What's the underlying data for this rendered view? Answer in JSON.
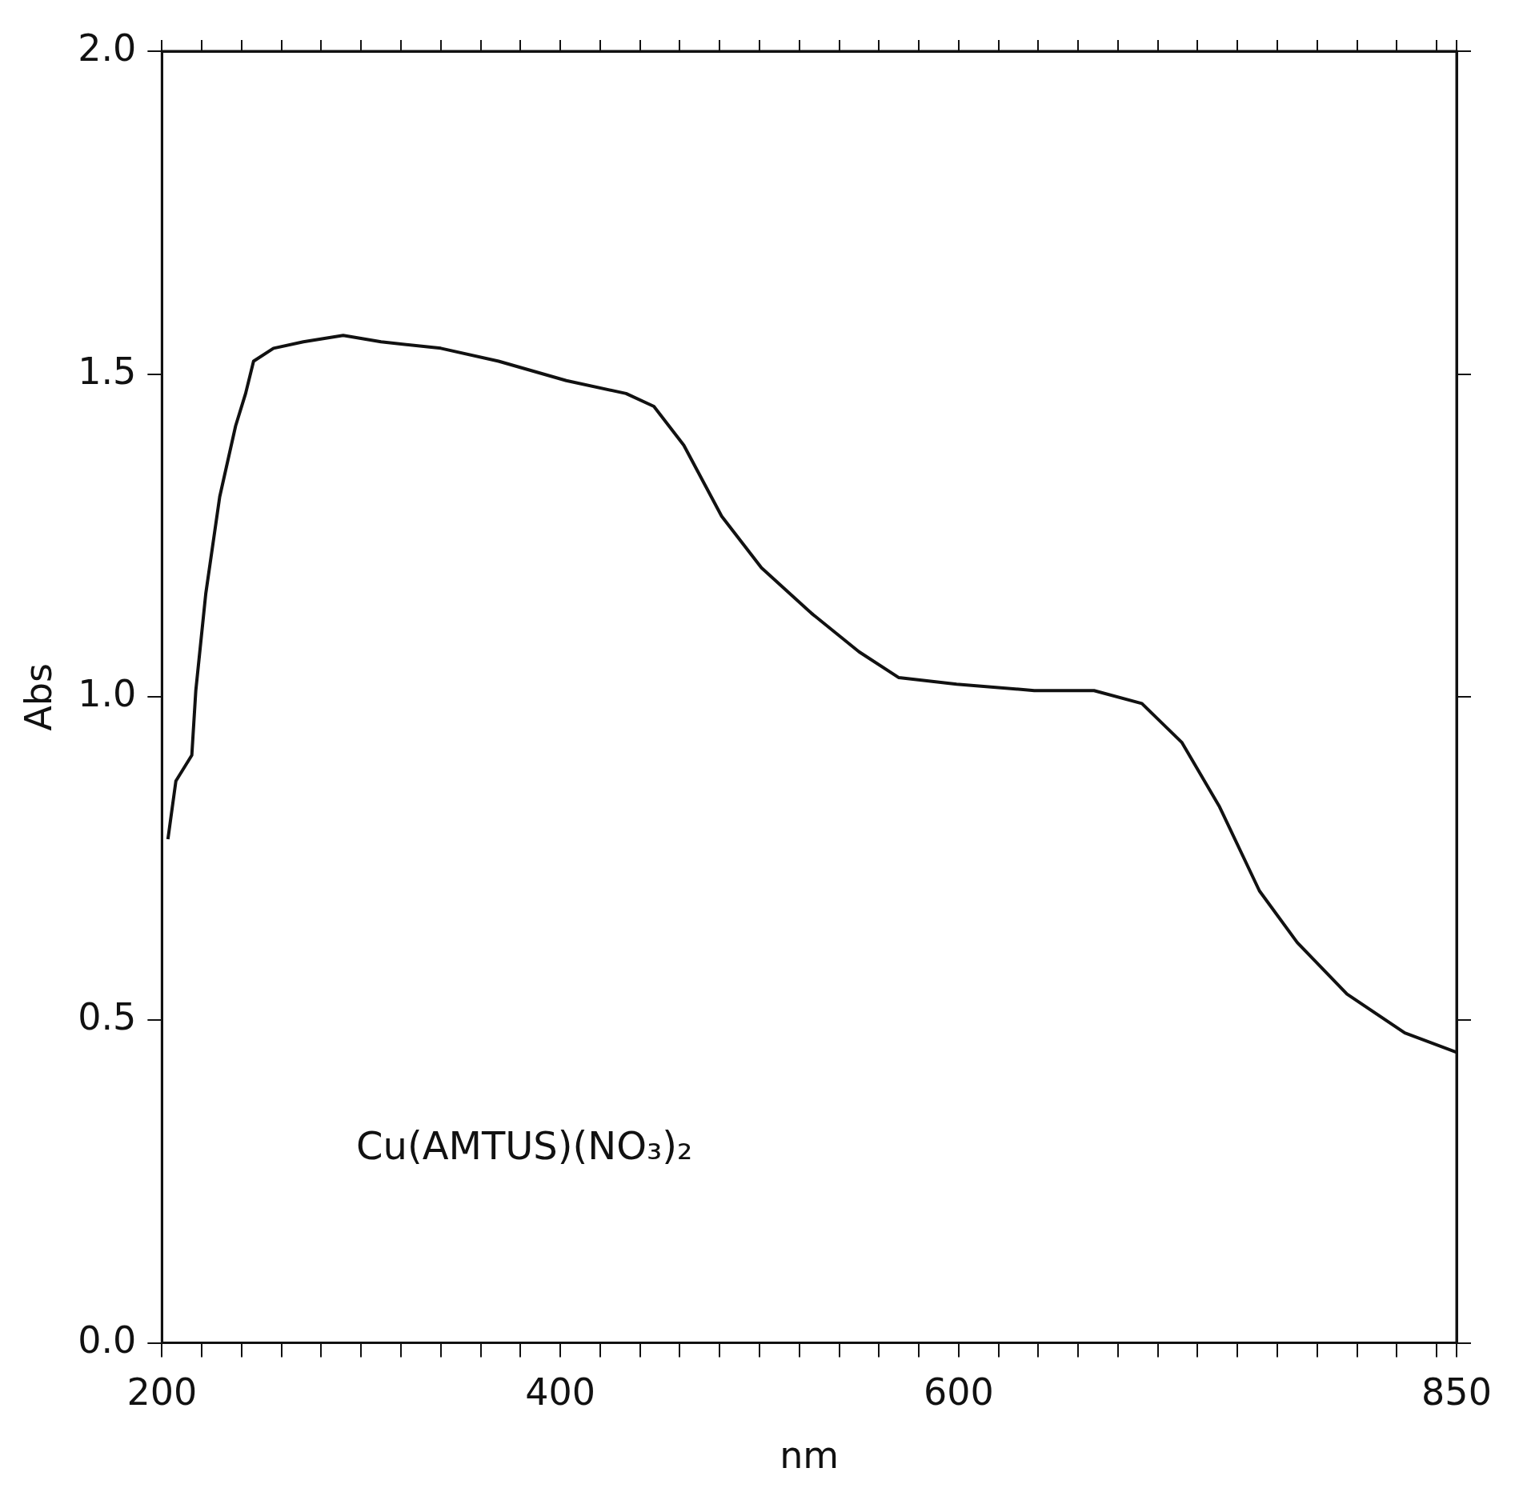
{
  "chart_data": {
    "type": "line",
    "xlabel": "nm",
    "ylabel": "Abs",
    "annotations": [
      "Cu(AMTUS)(NO₃)₂"
    ],
    "xlim": [
      200,
      850
    ],
    "ylim": [
      0,
      2
    ],
    "xticks": [
      200,
      {
        "value": 220,
        "label": null
      },
      {
        "value": 240,
        "label": null
      },
      {
        "value": 260,
        "label": null
      },
      {
        "value": 280,
        "label": null
      },
      {
        "value": 300,
        "label": null
      },
      {
        "value": 320,
        "label": null
      },
      {
        "value": 340,
        "label": null
      },
      {
        "value": 360,
        "label": null
      },
      {
        "value": 380,
        "label": null
      },
      400,
      {
        "value": 420,
        "label": null
      },
      {
        "value": 440,
        "label": null
      },
      {
        "value": 460,
        "label": null
      },
      {
        "value": 480,
        "label": null
      },
      {
        "value": 500,
        "label": null
      },
      {
        "value": 520,
        "label": null
      },
      {
        "value": 540,
        "label": null
      },
      {
        "value": 560,
        "label": null
      },
      {
        "value": 580,
        "label": null
      },
      600,
      {
        "value": 620,
        "label": null
      },
      {
        "value": 640,
        "label": null
      },
      {
        "value": 660,
        "label": null
      },
      {
        "value": 680,
        "label": null
      },
      {
        "value": 700,
        "label": null
      },
      {
        "value": 720,
        "label": null
      },
      {
        "value": 740,
        "label": null
      },
      {
        "value": 760,
        "label": null
      },
      {
        "value": 780,
        "label": null
      },
      {
        "value": 800,
        "label": null
      },
      {
        "value": 820,
        "label": null
      },
      {
        "value": 840,
        "label": null
      },
      850
    ],
    "yticks": [
      {
        "value": 0,
        "label": "0.0"
      },
      0.5,
      {
        "value": 1,
        "label": "1.0"
      },
      1.5,
      {
        "value": 2,
        "label": "2.0"
      }
    ],
    "grid": false,
    "legend": false,
    "marker": "none",
    "line_style": "solid",
    "series": [
      {
        "color": "#111111",
        "x": [
          203,
          207,
          215,
          217,
          222,
          229,
          237,
          242,
          246,
          256,
          271,
          291,
          310,
          340,
          369,
          403,
          433,
          447,
          462,
          481,
          501,
          526,
          550,
          570,
          599,
          638,
          668,
          692,
          712,
          731,
          751,
          770,
          795,
          824,
          850
        ],
        "values": [
          0.78,
          0.87,
          0.91,
          1.01,
          1.16,
          1.31,
          1.42,
          1.47,
          1.52,
          1.54,
          1.55,
          1.56,
          1.55,
          1.54,
          1.52,
          1.49,
          1.47,
          1.45,
          1.39,
          1.28,
          1.2,
          1.13,
          1.07,
          1.03,
          1.02,
          1.01,
          1.01,
          0.99,
          0.93,
          0.83,
          0.7,
          0.62,
          0.54,
          0.48,
          0.45
        ]
      }
    ]
  }
}
